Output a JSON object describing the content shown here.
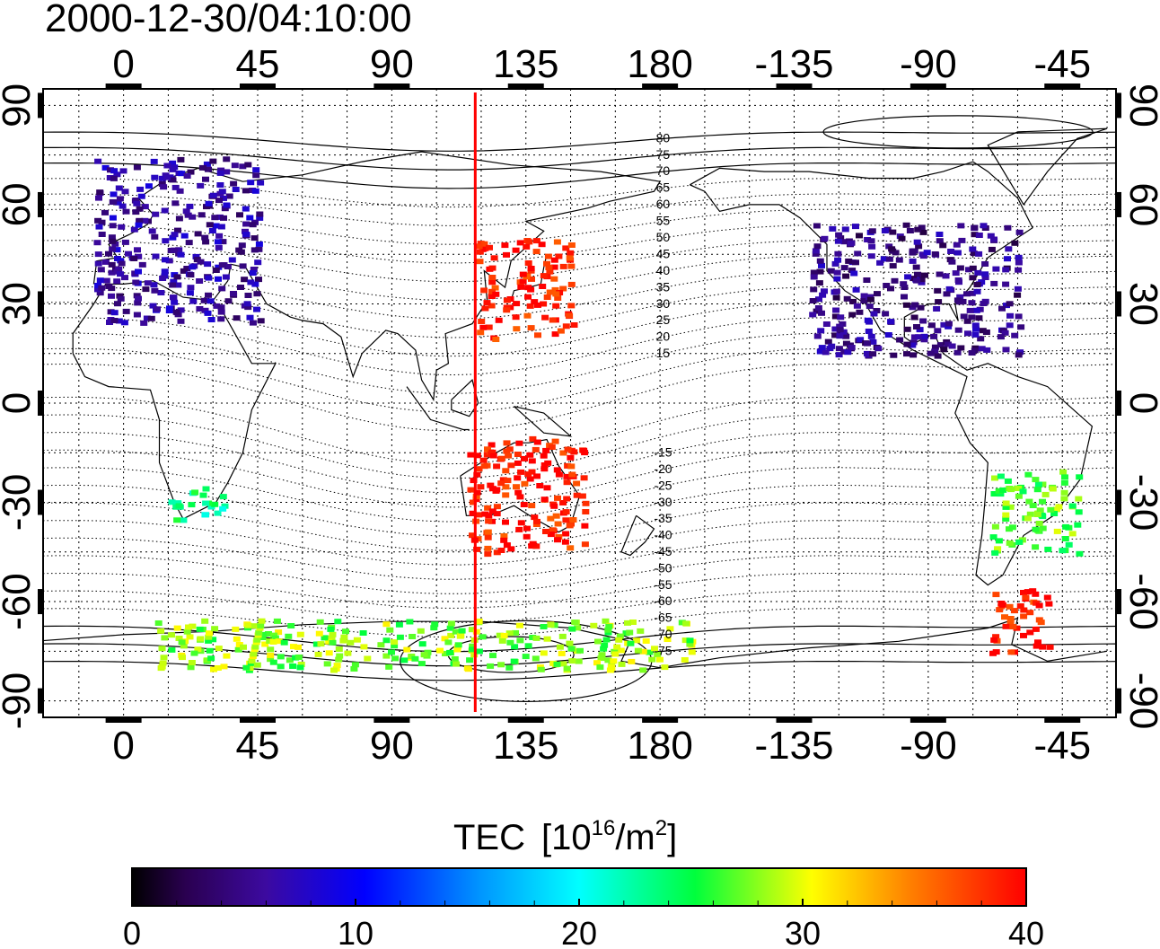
{
  "map": {
    "timestamp": "2000-12-30/04:10:00",
    "lon_ticks_top": [
      "0",
      "45",
      "90",
      "135",
      "180",
      "-135",
      "-90",
      "-45"
    ],
    "lon_ticks_bottom": [
      "0",
      "45",
      "90",
      "135",
      "180",
      "-135",
      "-90",
      "-45"
    ],
    "lat_ticks": [
      "90",
      "60",
      "30",
      "0",
      "-30",
      "-60",
      "-90"
    ],
    "lat_tick_values": [
      90,
      60,
      30,
      0,
      -30,
      -60,
      -90
    ],
    "lon_tick_values": [
      0,
      45,
      90,
      135,
      180,
      225,
      270,
      315
    ],
    "lon_extent": [
      -27,
      333
    ],
    "lat_extent": [
      -95,
      95
    ],
    "marker_longitude": 118,
    "marker_color": "#ff0000",
    "contour_labels_north": [
      "80",
      "75",
      "70",
      "65",
      "60",
      "55",
      "50",
      "45",
      "40",
      "35",
      "30",
      "25",
      "20",
      "15"
    ],
    "contour_labels_south": [
      "-15",
      "-20",
      "-25",
      "-30",
      "-35",
      "-40",
      "-45",
      "-50",
      "-55",
      "-60",
      "-65",
      "-70",
      "-75"
    ]
  },
  "colorbar": {
    "title": "TEC",
    "unit": "[10",
    "unit_exp": "16",
    "unit_rest": "/m",
    "unit_exp2": "2",
    "unit_close": "]",
    "ticks": [
      "0",
      "10",
      "20",
      "30",
      "40"
    ],
    "range": [
      0,
      40
    ],
    "colormap": "jet-black"
  },
  "tec_regions": [
    {
      "name": "europe",
      "lon": [
        -10,
        45
      ],
      "lat": [
        25,
        75
      ],
      "value": 6
    },
    {
      "name": "north-america",
      "lon": [
        230,
        300
      ],
      "lat": [
        15,
        55
      ],
      "value": 5
    },
    {
      "name": "east-asia",
      "lon": [
        118,
        150
      ],
      "lat": [
        20,
        50
      ],
      "value": 39
    },
    {
      "name": "australia",
      "lon": [
        115,
        155
      ],
      "lat": [
        -45,
        -10
      ],
      "value": 39
    },
    {
      "name": "south-america",
      "lon": [
        290,
        320
      ],
      "lat": [
        -45,
        -20
      ],
      "value": 27
    },
    {
      "name": "patagonia",
      "lon": [
        290,
        310
      ],
      "lat": [
        -75,
        -55
      ],
      "value": 39
    },
    {
      "name": "antarctica",
      "lon": [
        10,
        190
      ],
      "lat": [
        -80,
        -65
      ],
      "value": 28
    },
    {
      "name": "south-africa",
      "lon": [
        15,
        35
      ],
      "lat": [
        -35,
        -25
      ],
      "value": 23
    }
  ]
}
